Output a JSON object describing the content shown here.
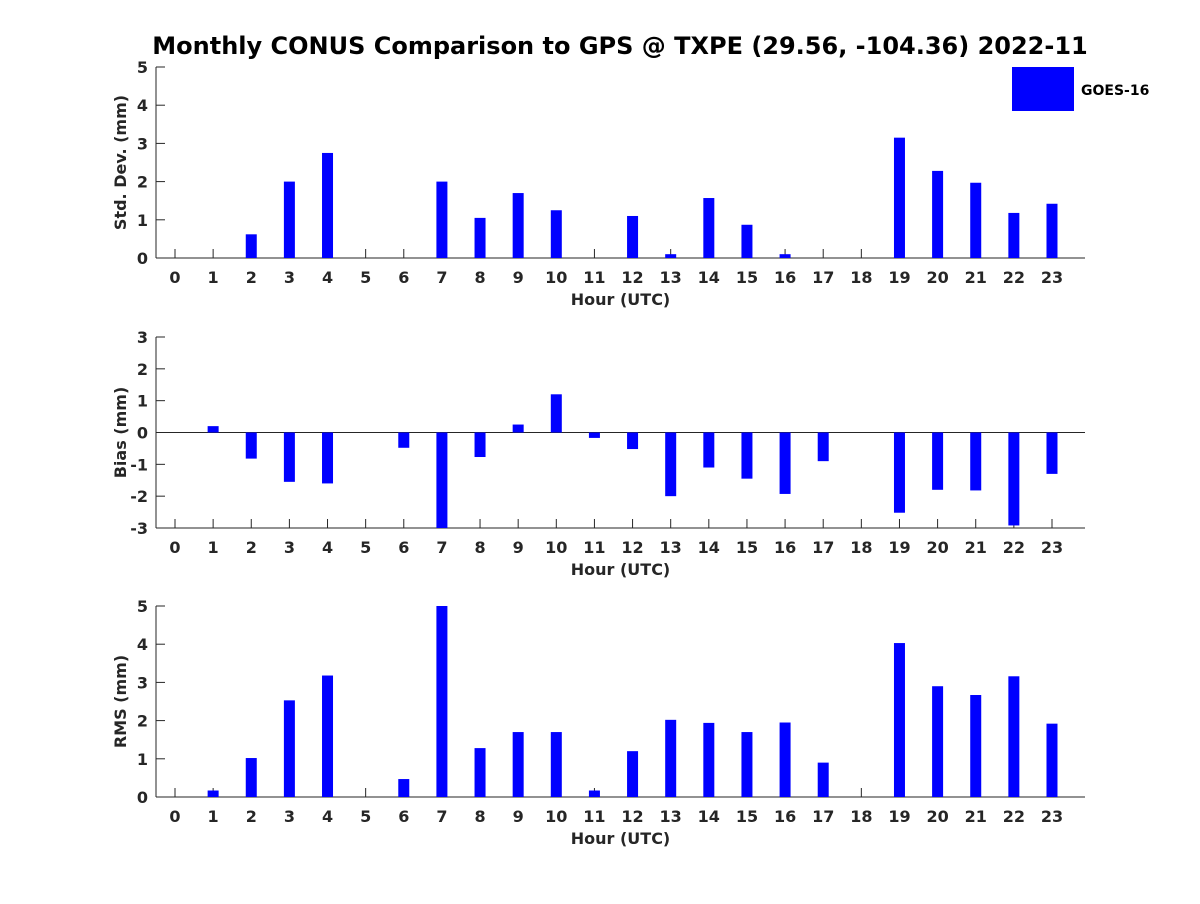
{
  "title": "Monthly CONUS Comparison to GPS @ TXPE (29.56, -104.36) 2022-11",
  "legend": {
    "label": "GOES-16",
    "color": "#0000ff",
    "placement": "top-right"
  },
  "chart_data": [
    {
      "type": "bar",
      "categories": [
        "0",
        "1",
        "2",
        "3",
        "4",
        "5",
        "6",
        "7",
        "8",
        "9",
        "10",
        "11",
        "12",
        "13",
        "14",
        "15",
        "16",
        "17",
        "18",
        "19",
        "20",
        "21",
        "22",
        "23"
      ],
      "series": [
        {
          "name": "GOES-16",
          "values": [
            0,
            0,
            0.62,
            2.0,
            2.75,
            0,
            0,
            2.0,
            1.05,
            1.7,
            1.25,
            0,
            1.1,
            0.1,
            1.57,
            0.87,
            0.1,
            0,
            0,
            3.15,
            2.28,
            1.97,
            1.18,
            1.42
          ]
        }
      ],
      "xlabel": "Hour (UTC)",
      "ylabel": "Std. Dev. (mm)",
      "ylim": [
        0,
        5
      ],
      "yticks": [
        "0",
        "1",
        "2",
        "3",
        "4",
        "5"
      ],
      "grid": false
    },
    {
      "type": "bar",
      "categories": [
        "0",
        "1",
        "2",
        "3",
        "4",
        "5",
        "6",
        "7",
        "8",
        "9",
        "10",
        "11",
        "12",
        "13",
        "14",
        "15",
        "16",
        "17",
        "18",
        "19",
        "20",
        "21",
        "22",
        "23"
      ],
      "series": [
        {
          "name": "GOES-16",
          "values": [
            0,
            0.2,
            -0.82,
            -1.55,
            -1.6,
            0,
            -0.48,
            -3.0,
            -0.77,
            0.25,
            1.2,
            -0.17,
            -0.52,
            -2.0,
            -1.1,
            -1.45,
            -1.93,
            -0.9,
            0,
            -2.52,
            -1.8,
            -1.82,
            -2.92,
            -1.3
          ]
        }
      ],
      "xlabel": "Hour (UTC)",
      "ylabel": "Bias (mm)",
      "ylim": [
        -3,
        3
      ],
      "yticks": [
        "-3",
        "-2",
        "-1",
        "0",
        "1",
        "2",
        "3"
      ],
      "grid": false
    },
    {
      "type": "bar",
      "categories": [
        "0",
        "1",
        "2",
        "3",
        "4",
        "5",
        "6",
        "7",
        "8",
        "9",
        "10",
        "11",
        "12",
        "13",
        "14",
        "15",
        "16",
        "17",
        "18",
        "19",
        "20",
        "21",
        "22",
        "23"
      ],
      "series": [
        {
          "name": "GOES-16",
          "values": [
            0,
            0.17,
            1.02,
            2.53,
            3.18,
            0,
            0.47,
            5.0,
            1.28,
            1.7,
            1.7,
            0.17,
            1.2,
            2.02,
            1.94,
            1.7,
            1.95,
            0.9,
            0,
            4.03,
            2.9,
            2.67,
            3.16,
            1.92
          ]
        }
      ],
      "xlabel": "Hour (UTC)",
      "ylabel": "RMS (mm)",
      "ylim": [
        0,
        5
      ],
      "yticks": [
        "0",
        "1",
        "2",
        "3",
        "4",
        "5"
      ],
      "grid": false
    }
  ]
}
